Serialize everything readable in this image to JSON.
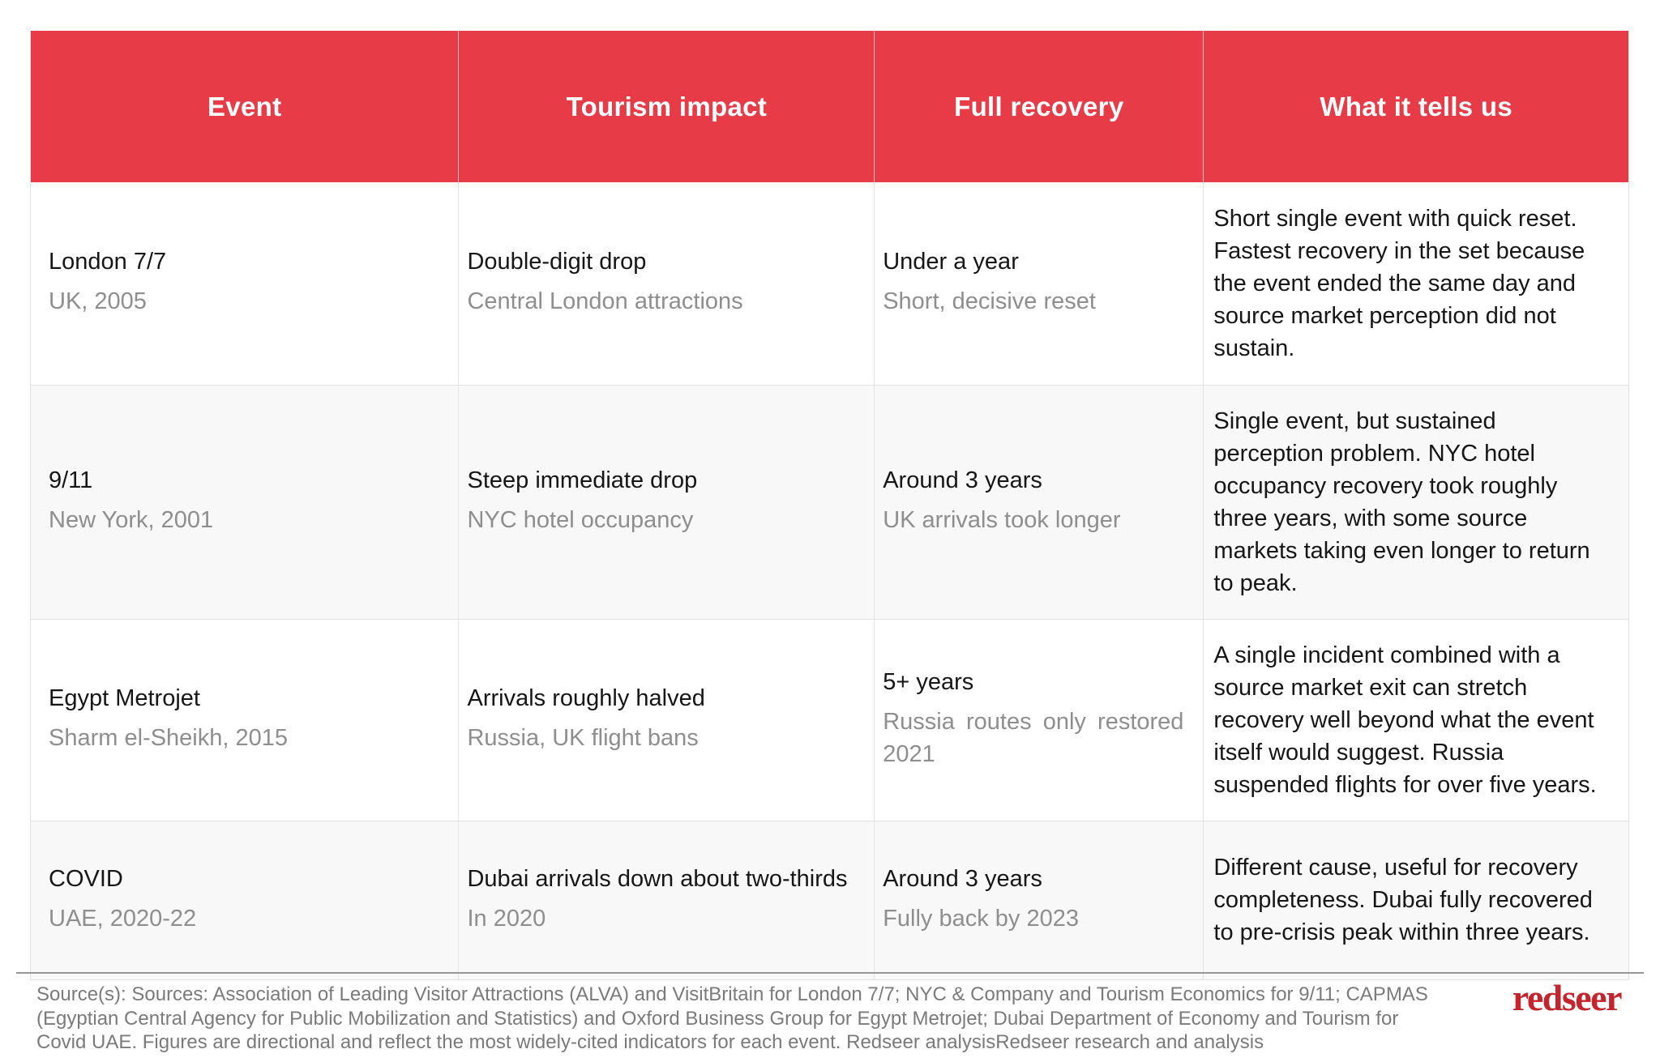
{
  "colors": {
    "header_bg": "#e73c47",
    "header_text": "#ffffff",
    "primary_text": "#161616",
    "secondary_text": "#8e8e8e",
    "alt_row_bg": "#f8f8f8",
    "logo_red": "#c4242c"
  },
  "table": {
    "columns": [
      "Event",
      "Tourism impact",
      "Full recovery",
      "What it tells us"
    ],
    "rows": [
      {
        "event": {
          "primary": "London 7/7",
          "secondary": "UK, 2005"
        },
        "impact": {
          "primary": "Double-digit drop",
          "secondary": "Central London attractions"
        },
        "recovery": {
          "primary": "Under a year",
          "secondary": "Short, decisive reset"
        },
        "tells": "Short single event with quick reset. Fastest recovery in the set because the event ended the same day and source market perception did not sustain."
      },
      {
        "event": {
          "primary": "9/11",
          "secondary": "New York, 2001"
        },
        "impact": {
          "primary": "Steep immediate drop",
          "secondary": "NYC hotel occupancy"
        },
        "recovery": {
          "primary": "Around 3 years",
          "secondary": "UK arrivals took longer"
        },
        "tells": "Single event, but sustained perception problem. NYC hotel occupancy recovery took roughly three years, with some source markets taking even longer to return to peak."
      },
      {
        "event": {
          "primary": "Egypt Metrojet",
          "secondary": "Sharm el-Sheikh, 2015"
        },
        "impact": {
          "primary": "Arrivals roughly halved",
          "secondary": "Russia, UK flight bans"
        },
        "recovery": {
          "primary": "5+ years",
          "secondary": "Russia routes only restored 2021"
        },
        "tells": "A single incident combined with a source market exit can stretch recovery well beyond what the event itself would suggest. Russia suspended flights for over five years."
      },
      {
        "event": {
          "primary": "COVID",
          "secondary": "UAE, 2020-22"
        },
        "impact": {
          "primary": "Dubai arrivals down about two-thirds",
          "secondary": "In 2020"
        },
        "recovery": {
          "primary": "Around 3 years",
          "secondary": "Fully back by 2023"
        },
        "tells": "Different cause, useful for recovery completeness. Dubai fully recovered to pre-crisis peak within three years."
      }
    ]
  },
  "footer": {
    "source_text": "Source(s): Sources: Association of Leading Visitor Attractions (ALVA) and VisitBritain for London 7/7; NYC & Company and Tourism Economics for 9/11; CAPMAS (Egyptian Central Agency for Public Mobilization and Statistics) and Oxford Business Group for Egypt Metrojet; Dubai Department of Economy and Tourism for Covid UAE. Figures are directional and reflect the most widely-cited indicators for each event. Redseer analysisRedseer research and analysis",
    "logo_text": "redseer"
  }
}
